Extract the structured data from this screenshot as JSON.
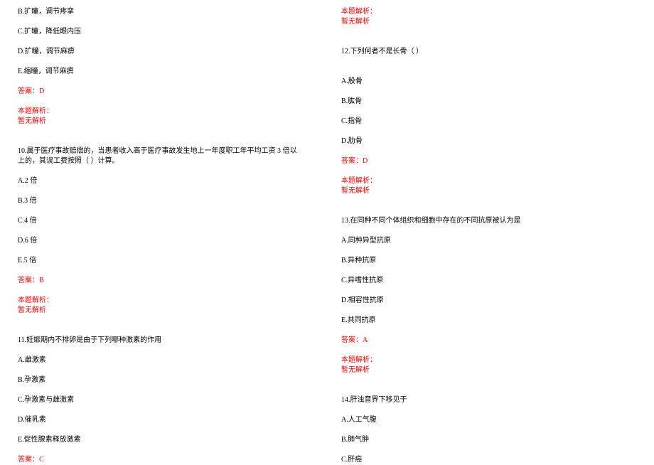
{
  "page": {
    "background_color": "#ffffff",
    "text_color": "#000000",
    "highlight_color": "#ff0000",
    "font_size": 10,
    "font_family": "SimSun"
  },
  "left_column": {
    "q9_options": {
      "B": "B.扩瞳，调节疼挛",
      "C": "C.扩瞳，降低眼内压",
      "D": "D.扩瞳，调节麻痹",
      "E": "E.缩瞳，调节麻痹"
    },
    "q9_answer": "答案：D",
    "q9_analysis_label": "本题解析：",
    "q9_analysis": "暂无解析",
    "q10_text": "10.属于医疗事故赔偿的，当患者收入高于医疗事故发生地上一年度职工年平均工资 3 倍以上的，其误工费按照（ ）计算。",
    "q10_options": {
      "A": "A.2 倍",
      "B": "B.3 倍",
      "C": "C.4 倍",
      "D": "D.6 倍",
      "E": "E.5 倍"
    },
    "q10_answer": "答案：B",
    "q10_analysis_label": "本题解析：",
    "q10_analysis": "暂无解析",
    "q11_text": "11.妊娠期内不排卵是由于下列哪种激素的作用",
    "q11_options": {
      "A": "A.雌激素",
      "B": "B.孕激素",
      "C": "C.孕激素与雌激素",
      "D": "D.催乳素",
      "E": "E.促性腺素释放激素"
    },
    "q11_answer": "答案：C"
  },
  "right_column": {
    "q11_analysis_label": "本题解析：",
    "q11_analysis": "暂无解析",
    "q12_text": "12.下列何者不是长骨（ ）",
    "q12_options": {
      "A": "A.股骨",
      "B": "B.肱骨",
      "C": "C.指骨",
      "D": "D.肋骨"
    },
    "q12_answer": "答案：D",
    "q12_analysis_label": "本题解析：",
    "q12_analysis": "暂无解析",
    "q13_text": "13.在同种不同个体组织和细胞中存在的不同抗原被认为是",
    "q13_options": {
      "A": "A.同种异型抗原",
      "B": "B.异种抗原",
      "C": "C.异嗜性抗原",
      "D": "D.相容性抗原",
      "E": "E.共同抗原"
    },
    "q13_answer": "答案：A",
    "q13_analysis_label": "本题解析：",
    "q13_analysis": "暂无解析",
    "q14_text": "14.肝浊音界下移见于",
    "q14_options": {
      "A": "A.人工气腹",
      "B": "B.肺气肿",
      "C": "C.肝癌"
    }
  }
}
